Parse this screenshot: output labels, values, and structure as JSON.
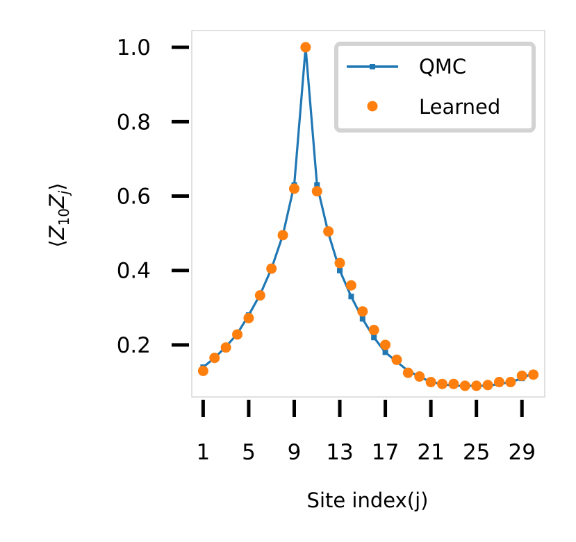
{
  "chart_data": {
    "type": "line",
    "title": "",
    "xlabel": "Site index(j)",
    "ylabel_parts": {
      "open": "⟨",
      "z1": "Z",
      "sub1": "10",
      "z2": "Z",
      "sub2": "j",
      "close": "⟩"
    },
    "x": [
      1,
      2,
      3,
      4,
      5,
      6,
      7,
      8,
      9,
      10,
      11,
      12,
      13,
      14,
      15,
      16,
      17,
      18,
      19,
      20,
      21,
      22,
      23,
      24,
      25,
      26,
      27,
      28,
      29,
      30
    ],
    "xticks": [
      1,
      5,
      9,
      13,
      17,
      21,
      25,
      29
    ],
    "xtick_labels": [
      "1",
      "5",
      "9",
      "13",
      "17",
      "21",
      "25",
      "29"
    ],
    "yticks": [
      0.2,
      0.4,
      0.6,
      0.8,
      1.0
    ],
    "ytick_labels": [
      "0.2",
      "0.4",
      "0.6",
      "0.8",
      "1.0"
    ],
    "xlim": [
      0.0,
      31.0
    ],
    "ylim": [
      0.06,
      1.045
    ],
    "grid": false,
    "legend_position": "top-right",
    "series": [
      {
        "name": "QMC",
        "style": "line-with-small-markers",
        "color": "#1f77b4",
        "values": [
          0.14,
          0.165,
          0.195,
          0.23,
          0.28,
          0.335,
          0.405,
          0.495,
          0.63,
          1.0,
          0.63,
          0.5,
          0.4,
          0.33,
          0.27,
          0.22,
          0.18,
          0.155,
          0.13,
          0.115,
          0.1,
          0.095,
          0.09,
          0.09,
          0.09,
          0.09,
          0.095,
          0.1,
          0.11,
          0.125
        ]
      },
      {
        "name": "Learned",
        "style": "markers",
        "color": "#ff7f0e",
        "values": [
          0.13,
          0.165,
          0.193,
          0.228,
          0.272,
          0.333,
          0.405,
          0.495,
          0.62,
          1.0,
          0.613,
          0.505,
          0.42,
          0.36,
          0.29,
          0.24,
          0.2,
          0.16,
          0.125,
          0.115,
          0.1,
          0.095,
          0.095,
          0.09,
          0.09,
          0.092,
          0.1,
          0.1,
          0.117,
          0.12
        ]
      }
    ]
  }
}
